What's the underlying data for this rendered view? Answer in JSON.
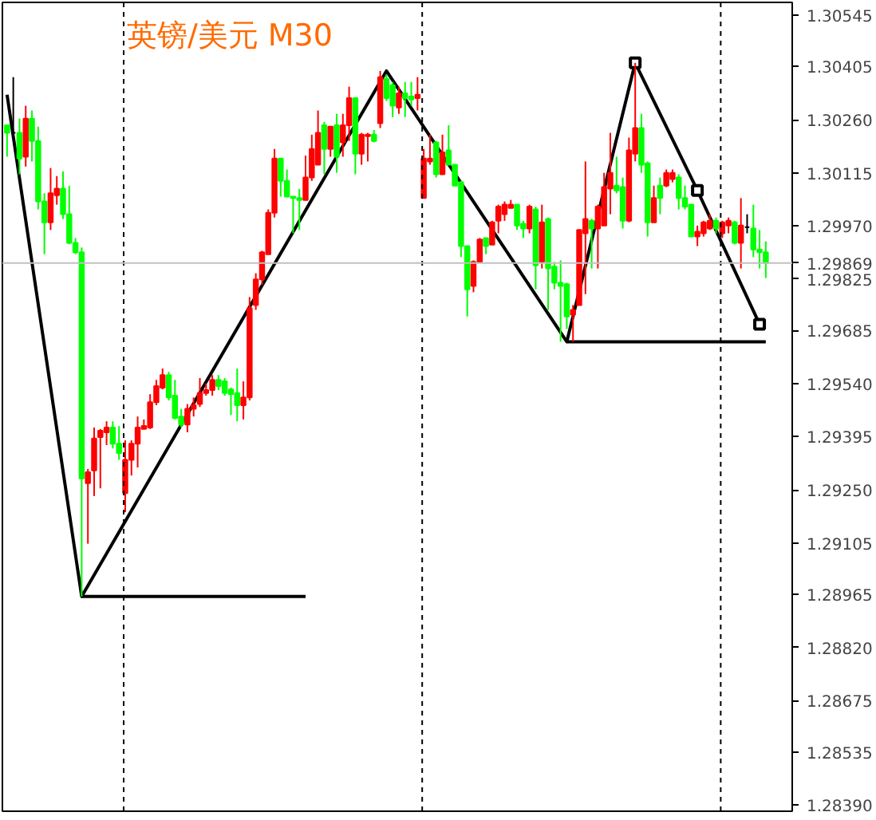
{
  "chart_data": {
    "type": "candlestick",
    "title": "英镑/美元 M30",
    "categories": [
      null,
      null,
      null,
      null,
      null,
      null,
      null,
      null,
      null,
      null,
      null,
      null,
      null,
      null,
      null,
      null,
      null,
      null,
      null,
      null,
      null,
      null,
      null,
      null,
      null,
      null,
      null,
      null,
      null,
      null,
      null,
      null,
      null,
      null,
      null,
      null,
      null,
      null,
      null,
      null,
      null,
      null,
      null,
      null,
      null,
      null,
      null,
      null,
      null,
      null,
      null,
      null,
      null,
      null,
      null,
      null,
      null,
      null,
      null,
      null,
      null,
      null,
      null,
      null,
      null,
      null,
      null,
      null,
      null,
      null,
      null,
      null,
      null,
      null,
      null,
      null,
      null,
      null,
      null,
      null,
      null,
      null,
      null,
      null,
      null,
      null,
      null,
      null,
      null,
      null,
      null,
      null,
      null,
      null,
      null,
      null,
      null,
      null,
      null,
      null,
      null,
      null,
      null,
      null,
      null,
      null,
      null,
      null,
      null,
      null,
      null,
      null,
      null,
      null,
      null,
      null,
      null,
      null,
      null,
      null,
      null,
      null,
      null
    ],
    "ohlc": [
      [
        1.30245,
        1.30245,
        1.30159,
        1.30224
      ],
      [
        1.30224,
        1.30376,
        1.30219,
        1.30224
      ],
      [
        1.30224,
        1.30263,
        1.30111,
        1.30154
      ],
      [
        1.30159,
        1.30298,
        1.30132,
        1.30263
      ],
      [
        1.30263,
        1.30285,
        1.30146,
        1.30202
      ],
      [
        1.30202,
        1.30241,
        1.30015,
        1.30037
      ],
      [
        1.30037,
        1.30059,
        1.29893,
        1.2998
      ],
      [
        1.2998,
        1.30128,
        1.29959,
        1.30059
      ],
      [
        1.30054,
        1.30106,
        1.30028,
        1.30072
      ],
      [
        1.30072,
        1.30119,
        1.29989,
        1.30002
      ],
      [
        1.30002,
        1.3008,
        1.2992,
        1.29924
      ],
      [
        1.29924,
        1.29937,
        1.29893,
        1.29898
      ],
      [
        1.29898,
        1.29911,
        1.28959,
        1.29281
      ],
      [
        1.29268,
        1.29307,
        1.29103,
        1.29298
      ],
      [
        1.29303,
        1.2942,
        1.29233,
        1.2939
      ],
      [
        1.29394,
        1.29416,
        1.29254,
        1.29411
      ],
      [
        1.29407,
        1.29437,
        1.29372,
        1.2942
      ],
      [
        1.2942,
        1.29437,
        1.29363,
        1.29376
      ],
      [
        1.29376,
        1.29424,
        1.29332,
        1.2935
      ],
      [
        1.29241,
        1.29385,
        1.29189,
        1.29332
      ],
      [
        1.29332,
        1.29385,
        1.29289,
        1.29376
      ],
      [
        1.29376,
        1.2945,
        1.29311,
        1.2942
      ],
      [
        1.29416,
        1.29442,
        1.29416,
        1.29424
      ],
      [
        1.2942,
        1.29511,
        1.29416,
        1.29489
      ],
      [
        1.29489,
        1.2955,
        1.29481,
        1.29533
      ],
      [
        1.29529,
        1.29581,
        1.29524,
        1.29563
      ],
      [
        1.29563,
        1.29572,
        1.29494,
        1.29502
      ],
      [
        1.29507,
        1.2955,
        1.29442,
        1.29446
      ],
      [
        1.2945,
        1.29471,
        1.2942,
        1.29428
      ],
      [
        1.29428,
        1.29484,
        1.29407,
        1.29471
      ],
      [
        1.29471,
        1.29502,
        1.2945,
        1.29481
      ],
      [
        1.29484,
        1.29555,
        1.29476,
        1.29514
      ],
      [
        1.29514,
        1.2954,
        1.29507,
        1.29522
      ],
      [
        1.29522,
        1.29563,
        1.29507,
        1.2955
      ],
      [
        1.2955,
        1.29563,
        1.29522,
        1.29533
      ],
      [
        1.29546,
        1.29555,
        1.29507,
        1.29514
      ],
      [
        1.29524,
        1.29529,
        1.29454,
        1.29511
      ],
      [
        1.29514,
        1.29581,
        1.29437,
        1.29481
      ],
      [
        1.29481,
        1.29546,
        1.29442,
        1.29502
      ],
      [
        1.29502,
        1.29776,
        1.29494,
        1.29746
      ],
      [
        1.29754,
        1.29841,
        1.29741,
        1.29824
      ],
      [
        1.29824,
        1.29902,
        1.29809,
        1.29898
      ],
      [
        1.29893,
        1.30015,
        1.29893,
        1.30006
      ],
      [
        1.30006,
        1.3018,
        1.29993,
        1.30154
      ],
      [
        1.30154,
        1.30154,
        1.3005,
        1.30093
      ],
      [
        1.30093,
        1.30124,
        1.3005,
        1.3005
      ],
      [
        1.3005,
        1.3005,
        1.2995,
        1.30046
      ],
      [
        1.30046,
        1.30071,
        1.29959,
        1.30041
      ],
      [
        1.30041,
        1.30162,
        1.30041,
        1.30102
      ],
      [
        1.30102,
        1.30219,
        1.30093,
        1.3018
      ],
      [
        1.30137,
        1.30285,
        1.30137,
        1.30224
      ],
      [
        1.30245,
        1.30254,
        1.30111,
        1.3018
      ],
      [
        1.3018,
        1.30241,
        1.30159,
        1.30241
      ],
      [
        1.30245,
        1.30276,
        1.30115,
        1.30159
      ],
      [
        1.30198,
        1.30276,
        1.30159,
        1.30245
      ],
      [
        1.30245,
        1.3035,
        1.30202,
        1.30319
      ],
      [
        1.30319,
        1.30319,
        1.30111,
        1.30167
      ],
      [
        1.30167,
        1.30224,
        1.30137,
        1.30219
      ],
      [
        1.30215,
        1.30224,
        1.30146,
        1.30219
      ],
      [
        1.30219,
        1.30232,
        1.30198,
        1.30202
      ],
      [
        1.3025,
        1.30393,
        1.30237,
        1.30376
      ],
      [
        1.30371,
        1.30384,
        1.30311,
        1.30319
      ],
      [
        1.30354,
        1.30363,
        1.30267,
        1.30298
      ],
      [
        1.30293,
        1.3035,
        1.30276,
        1.30332
      ],
      [
        1.30332,
        1.30363,
        1.30267,
        1.30319
      ],
      [
        1.30323,
        1.30363,
        1.30298,
        1.30315
      ],
      [
        1.30319,
        1.30376,
        1.30285,
        1.30328
      ],
      [
        1.30046,
        1.3018,
        1.30046,
        1.30154
      ],
      [
        1.30146,
        1.30219,
        1.30137,
        1.30154
      ],
      [
        1.30198,
        1.30202,
        1.30102,
        1.30111
      ],
      [
        1.30111,
        1.30219,
        1.30111,
        1.30171
      ],
      [
        1.30176,
        1.30245,
        1.30137,
        1.30137
      ],
      [
        1.30137,
        1.30137,
        1.3008,
        1.3008
      ],
      [
        1.30089,
        1.30093,
        1.29885,
        1.29915
      ],
      [
        1.29915,
        1.29915,
        1.29723,
        1.29797
      ],
      [
        1.29806,
        1.29876,
        1.29789,
        1.29872
      ],
      [
        1.29872,
        1.29937,
        1.29872,
        1.29933
      ],
      [
        1.29937,
        1.29937,
        1.29893,
        1.29915
      ],
      [
        1.29919,
        1.29984,
        1.29919,
        1.2998
      ],
      [
        1.29984,
        1.30028,
        1.2995,
        1.30023
      ],
      [
        1.30002,
        1.30037,
        1.29984,
        1.30028
      ],
      [
        1.30019,
        1.30041,
        1.30019,
        1.30028
      ],
      [
        1.30028,
        1.30028,
        1.29959,
        1.29971
      ],
      [
        1.29976,
        1.29984,
        1.29937,
        1.29963
      ],
      [
        1.29963,
        1.30028,
        1.2995,
        1.30023
      ],
      [
        1.30015,
        1.30023,
        1.29797,
        1.29863
      ],
      [
        1.29872,
        1.30028,
        1.29854,
        1.2998
      ],
      [
        1.29989,
        1.29993,
        1.29741,
        1.29854
      ],
      [
        1.29859,
        1.29872,
        1.29797,
        1.29815
      ],
      [
        1.29815,
        1.29876,
        1.29654,
        1.29806
      ],
      [
        1.29811,
        1.29815,
        1.29689,
        1.29723
      ],
      [
        1.29728,
        1.29754,
        1.29654,
        1.29741
      ],
      [
        1.29754,
        1.29959,
        1.29754,
        1.29959
      ],
      [
        1.2995,
        1.30146,
        1.29784,
        1.29989
      ],
      [
        1.29984,
        1.29989,
        1.29854,
        1.29963
      ],
      [
        1.29963,
        1.30028,
        1.29854,
        1.30023
      ],
      [
        1.29971,
        1.30115,
        1.29971,
        1.30076
      ],
      [
        1.30072,
        1.30224,
        1.30002,
        1.30115
      ],
      [
        1.3008,
        1.30159,
        1.30059,
        1.30067
      ],
      [
        1.30076,
        1.30102,
        1.29963,
        1.29984
      ],
      [
        1.29984,
        1.30211,
        1.2998,
        1.30176
      ],
      [
        1.30167,
        1.30415,
        1.30146,
        1.30237
      ],
      [
        1.30237,
        1.30276,
        1.30115,
        1.30137
      ],
      [
        1.30141,
        1.30146,
        1.29941,
        1.2998
      ],
      [
        1.2998,
        1.3008,
        1.2998,
        1.30046
      ],
      [
        1.3008,
        1.30102,
        1.30002,
        1.30046
      ],
      [
        1.3008,
        1.30124,
        1.30076,
        1.30115
      ],
      [
        1.30098,
        1.30124,
        1.30089,
        1.30115
      ],
      [
        1.30102,
        1.30111,
        1.30015,
        1.30046
      ],
      [
        1.30046,
        1.3008,
        1.30015,
        1.30023
      ],
      [
        1.30028,
        1.30028,
        1.29941,
        1.29941
      ],
      [
        1.29941,
        1.29971,
        1.29915,
        1.29954
      ],
      [
        1.2995,
        1.29984,
        1.29941,
        1.2998
      ],
      [
        1.29963,
        1.30002,
        1.29959,
        1.29984
      ],
      [
        1.29984,
        1.29993,
        1.2995,
        1.29963
      ],
      [
        1.2995,
        1.29984,
        1.29937,
        1.2998
      ],
      [
        1.29971,
        1.29993,
        1.2995,
        1.29984
      ],
      [
        1.2998,
        1.29984,
        1.2992,
        1.29924
      ],
      [
        1.29924,
        1.30046,
        1.29854,
        1.29971
      ],
      [
        1.29967,
        1.30002,
        1.2995,
        1.29967
      ],
      [
        1.29963,
        1.30028,
        1.29885,
        1.29906
      ],
      [
        1.29906,
        1.29959,
        1.29854,
        1.29898
      ],
      [
        1.29898,
        1.29928,
        1.29828,
        1.29869
      ]
    ],
    "colors": [
      "#00ff00",
      "#000000",
      "#00ff00",
      "#ff0000",
      "#00ff00",
      "#00ff00",
      "#00ff00",
      "#ff0000",
      "#ff0000",
      "#00ff00",
      "#00ff00",
      "#00ff00",
      "#00ff00",
      "#ff0000",
      "#ff0000",
      "#ff0000",
      "#ff0000",
      "#00ff00",
      "#00ff00",
      "#ff0000",
      "#ff0000",
      "#ff0000",
      "#ff0000",
      "#ff0000",
      "#ff0000",
      "#ff0000",
      "#00ff00",
      "#00ff00",
      "#00ff00",
      "#ff0000",
      "#ff0000",
      "#ff0000",
      "#ff0000",
      "#ff0000",
      "#00ff00",
      "#00ff00",
      "#00ff00",
      "#00ff00",
      "#ff0000",
      "#ff0000",
      "#ff0000",
      "#ff0000",
      "#ff0000",
      "#ff0000",
      "#00ff00",
      "#00ff00",
      "#00ff00",
      "#00ff00",
      "#ff0000",
      "#ff0000",
      "#ff0000",
      "#00ff00",
      "#ff0000",
      "#00ff00",
      "#ff0000",
      "#ff0000",
      "#00ff00",
      "#ff0000",
      "#ff0000",
      "#00ff00",
      "#ff0000",
      "#00ff00",
      "#00ff00",
      "#ff0000",
      "#00ff00",
      "#00ff00",
      "#ff0000",
      "#ff0000",
      "#ff0000",
      "#00ff00",
      "#ff0000",
      "#00ff00",
      "#00ff00",
      "#00ff00",
      "#00ff00",
      "#ff0000",
      "#ff0000",
      "#00ff00",
      "#ff0000",
      "#ff0000",
      "#ff0000",
      "#ff0000",
      "#00ff00",
      "#00ff00",
      "#ff0000",
      "#00ff00",
      "#ff0000",
      "#00ff00",
      "#00ff00",
      "#00ff00",
      "#00ff00",
      "#ff0000",
      "#ff0000",
      "#ff0000",
      "#00ff00",
      "#ff0000",
      "#ff0000",
      "#ff0000",
      "#00ff00",
      "#00ff00",
      "#ff0000",
      "#ff0000",
      "#00ff00",
      "#00ff00",
      "#ff0000",
      "#00ff00",
      "#ff0000",
      "#ff0000",
      "#00ff00",
      "#00ff00",
      "#00ff00",
      "#ff0000",
      "#ff0000",
      "#ff0000",
      "#00ff00",
      "#ff0000",
      "#ff0000",
      "#00ff00",
      "#ff0000",
      "#000000",
      "#00ff00",
      "#00ff00",
      "#00ff00"
    ],
    "ylim": [
      1.28373,
      1.3058
    ],
    "yticks": [
      {
        "value": 1.30545,
        "label": "1.30545"
      },
      {
        "value": 1.30405,
        "label": "1.30405"
      },
      {
        "value": 1.3026,
        "label": "1.30260"
      },
      {
        "value": 1.30115,
        "label": "1.30115"
      },
      {
        "value": 1.2997,
        "label": "1.29970"
      },
      {
        "value": 1.29825,
        "label": "1.29825"
      },
      {
        "value": 1.29685,
        "label": "1.29685"
      },
      {
        "value": 1.2954,
        "label": "1.29540"
      },
      {
        "value": 1.29395,
        "label": "1.29395"
      },
      {
        "value": 1.2925,
        "label": "1.29250"
      },
      {
        "value": 1.29105,
        "label": "1.29105"
      },
      {
        "value": 1.28965,
        "label": "1.28965"
      },
      {
        "value": 1.2882,
        "label": "1.28820"
      },
      {
        "value": 1.28675,
        "label": "1.28675"
      },
      {
        "value": 1.28535,
        "label": "1.28535"
      },
      {
        "value": 1.2839,
        "label": "1.28390"
      }
    ],
    "tick_labels": "y",
    "ref_lines": [
      {
        "axis": "y",
        "value": 1.29869,
        "label": "1.29869",
        "color": "#c0c0c0"
      }
    ],
    "series": [
      {
        "type": "line",
        "color": "#000000",
        "values": [
          1.30328,
          null,
          null,
          null,
          null,
          null,
          null,
          null,
          null,
          null,
          null,
          null,
          1.28959,
          null,
          null,
          null,
          null,
          null,
          null,
          null,
          null,
          null,
          null,
          null,
          null,
          null,
          null,
          null,
          null,
          null,
          null,
          null,
          null,
          null,
          null,
          null,
          null,
          null,
          null,
          null,
          null,
          null,
          null,
          null,
          null,
          null,
          null,
          null,
          null,
          null,
          null,
          null,
          null,
          null,
          null,
          null,
          null,
          null,
          null,
          null,
          null,
          1.30393,
          null,
          null,
          null,
          null,
          null,
          null,
          null,
          null,
          null,
          null,
          null,
          null,
          null,
          null,
          null,
          null,
          null,
          null,
          null,
          null,
          null,
          null,
          null,
          null,
          null,
          null,
          null,
          null,
          1.29654,
          null,
          null,
          null,
          null,
          null,
          null,
          null,
          null,
          null,
          null,
          1.30415,
          null,
          null,
          null,
          null,
          null,
          null,
          null,
          null,
          null,
          1.30067,
          null,
          null,
          null,
          null,
          null,
          null,
          null,
          null,
          null,
          1.29702,
          null
        ]
      },
      {
        "type": "line",
        "color": "#000000",
        "values": [
          null,
          null,
          null,
          null,
          null,
          null,
          null,
          null,
          null,
          null,
          null,
          null,
          1.28959,
          null,
          null,
          null,
          null,
          null,
          null,
          null,
          null,
          null,
          null,
          null,
          null,
          null,
          null,
          null,
          null,
          null,
          null,
          null,
          null,
          null,
          null,
          null,
          null,
          null,
          null,
          null,
          null,
          null,
          null,
          null,
          null,
          null,
          null,
          null,
          1.28959,
          null,
          null,
          null,
          null,
          null,
          null,
          null,
          null,
          null,
          null,
          null,
          null,
          null,
          null,
          null,
          null,
          null,
          null,
          null,
          null,
          null,
          null,
          null,
          null,
          null,
          null,
          null,
          null,
          null,
          null,
          null,
          null,
          null,
          null,
          null,
          null,
          null,
          null,
          null,
          null,
          null,
          null,
          null,
          null,
          null,
          null,
          null,
          null,
          null,
          null,
          null,
          null,
          null,
          null,
          null,
          null,
          null,
          null,
          null,
          null,
          null,
          null,
          null,
          null,
          null,
          null,
          null,
          null,
          null,
          null,
          null,
          null,
          null,
          null
        ]
      },
      {
        "type": "line",
        "color": "#000000",
        "values": [
          null,
          null,
          null,
          null,
          null,
          null,
          null,
          null,
          null,
          null,
          null,
          null,
          null,
          null,
          null,
          null,
          null,
          null,
          null,
          null,
          null,
          null,
          null,
          null,
          null,
          null,
          null,
          null,
          null,
          null,
          null,
          null,
          null,
          null,
          null,
          null,
          null,
          null,
          null,
          null,
          null,
          null,
          null,
          null,
          null,
          null,
          null,
          null,
          null,
          null,
          null,
          null,
          null,
          null,
          null,
          null,
          null,
          null,
          null,
          null,
          null,
          null,
          null,
          null,
          null,
          null,
          null,
          null,
          null,
          null,
          null,
          null,
          null,
          null,
          null,
          null,
          null,
          null,
          null,
          null,
          null,
          null,
          null,
          null,
          null,
          null,
          null,
          null,
          null,
          null,
          1.29654,
          null,
          null,
          null,
          null,
          null,
          null,
          null,
          null,
          null,
          null,
          null,
          null,
          null,
          null,
          null,
          null,
          null,
          null,
          null,
          null,
          null,
          null,
          null,
          null,
          null,
          null,
          null,
          null,
          null,
          null,
          null,
          1.29654
        ]
      },
      {
        "type": "scatter",
        "marker": "square",
        "color": "#000000",
        "values": [
          null,
          null,
          null,
          null,
          null,
          null,
          null,
          null,
          null,
          null,
          null,
          null,
          null,
          null,
          null,
          null,
          null,
          null,
          null,
          null,
          null,
          null,
          null,
          null,
          null,
          null,
          null,
          null,
          null,
          null,
          null,
          null,
          null,
          null,
          null,
          null,
          null,
          null,
          null,
          null,
          null,
          null,
          null,
          null,
          null,
          null,
          null,
          null,
          null,
          null,
          null,
          null,
          null,
          null,
          null,
          null,
          null,
          null,
          null,
          null,
          null,
          null,
          null,
          null,
          null,
          null,
          null,
          null,
          null,
          null,
          null,
          null,
          null,
          null,
          null,
          null,
          null,
          null,
          null,
          null,
          null,
          null,
          null,
          null,
          null,
          null,
          null,
          null,
          null,
          null,
          null,
          null,
          null,
          null,
          null,
          null,
          null,
          null,
          null,
          null,
          null,
          1.30415,
          null,
          null,
          null,
          null,
          null,
          null,
          null,
          null,
          null,
          1.30067,
          null,
          null,
          null,
          null,
          null,
          null,
          null,
          null,
          null,
          1.29702,
          null
        ]
      }
    ]
  }
}
